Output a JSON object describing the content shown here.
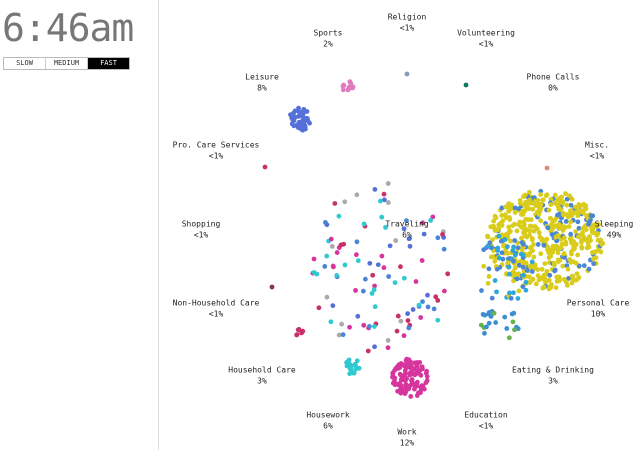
{
  "clock": "6:46am",
  "speed_buttons": {
    "options": [
      "SLOW",
      "MEDIUM",
      "FAST"
    ],
    "active": 2
  },
  "activities": [
    {
      "label": "Religion",
      "share": "<1%"
    },
    {
      "label": "Sports",
      "share": "2%"
    },
    {
      "label": "Volunteering",
      "share": "<1%"
    },
    {
      "label": "Phone Calls",
      "share": "0%"
    },
    {
      "label": "Leisure",
      "share": "8%"
    },
    {
      "label": "Pro. Care Services",
      "share": "<1%"
    },
    {
      "label": "Misc.",
      "share": "<1%"
    },
    {
      "label": "Shopping",
      "share": "<1%"
    },
    {
      "label": "Traveling",
      "share": "6%"
    },
    {
      "label": "Sleeping",
      "share": "49%"
    },
    {
      "label": "Non-Household Care",
      "share": "<1%"
    },
    {
      "label": "Personal Care",
      "share": "10%"
    },
    {
      "label": "Household Care",
      "share": "3%"
    },
    {
      "label": "Eating & Drinking",
      "share": "3%"
    },
    {
      "label": "Housework",
      "share": "6%"
    },
    {
      "label": "Education",
      "share": "<1%"
    },
    {
      "label": "Work",
      "share": "12%"
    }
  ]
}
